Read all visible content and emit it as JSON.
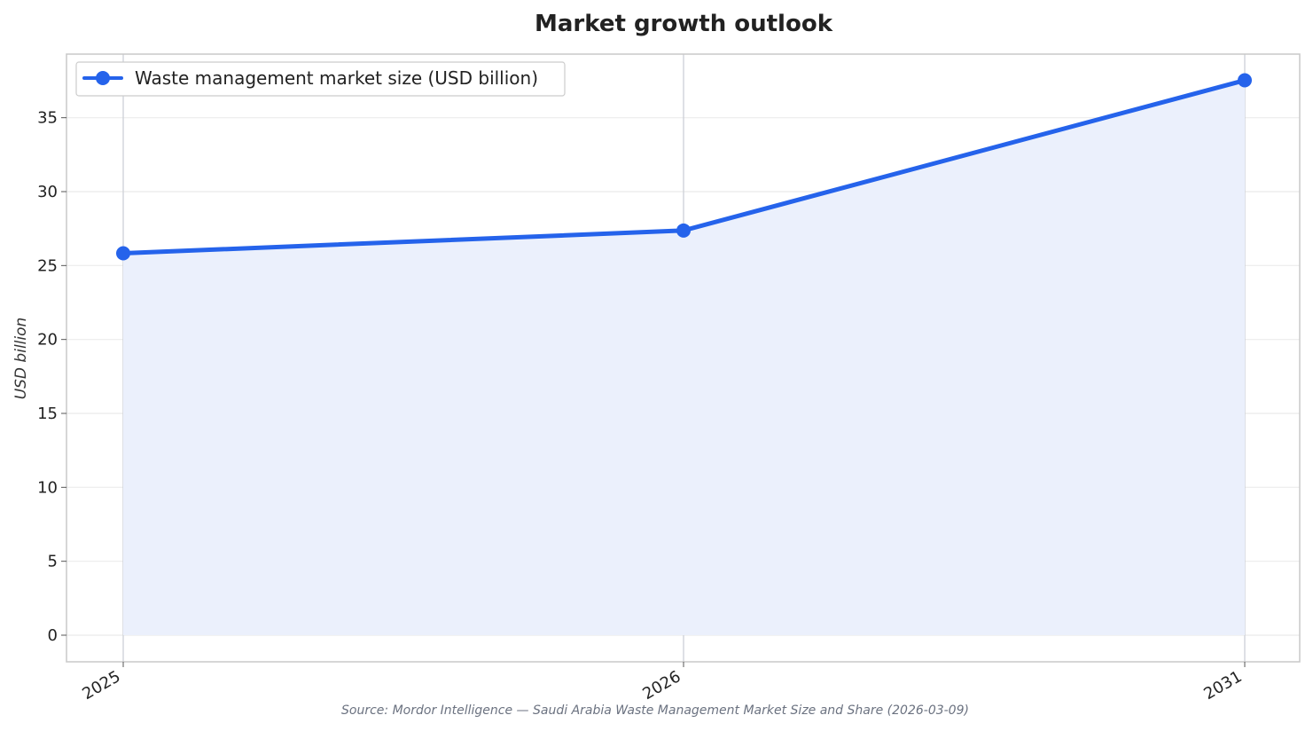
{
  "chart_data": {
    "type": "area",
    "title": "Market growth outlook",
    "xlabel": "",
    "ylabel": "USD billion",
    "categories": [
      "2025",
      "2026",
      "2031"
    ],
    "series": [
      {
        "name": "Waste management market size (USD billion)",
        "values": [
          25.83,
          27.37,
          37.53
        ],
        "color": "#2563eb",
        "fill_color": "#ebf0fc"
      }
    ],
    "ylim": [
      -1.8,
      39.3
    ],
    "yticks": [
      "0",
      "5",
      "10",
      "15",
      "20",
      "25",
      "30",
      "35"
    ],
    "grid": true,
    "legend_position": "top-left",
    "x_tick_rotation": "rotated",
    "source": "Source: Mordor Intelligence — Saudi Arabia Waste Management Market Size and Share (2026-03-09)"
  }
}
